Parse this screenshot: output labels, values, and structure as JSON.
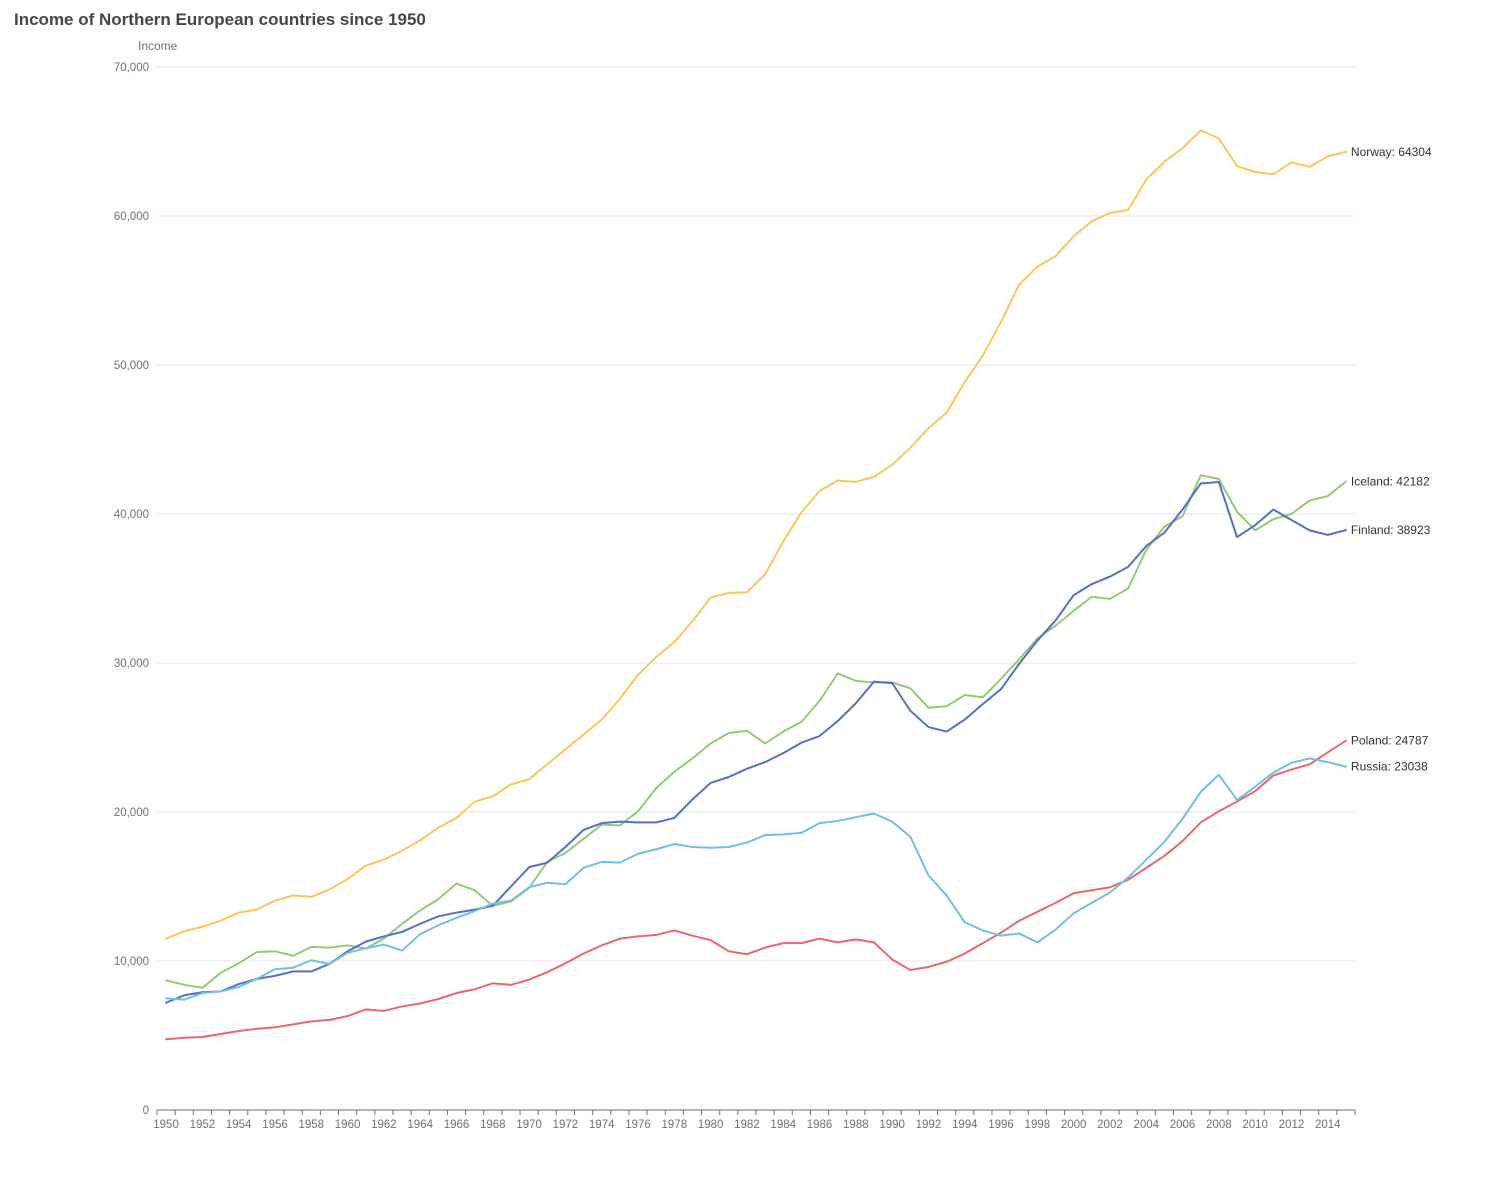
{
  "chart_data": {
    "type": "line",
    "title": "Income of Northern European countries since 1950",
    "ylabel": "Income",
    "xlabel": "",
    "ylim": [
      0,
      70000
    ],
    "yticks": [
      0,
      10000,
      20000,
      30000,
      40000,
      50000,
      60000,
      70000
    ],
    "ytick_labels": [
      "0",
      "10,000",
      "20,000",
      "30,000",
      "40,000",
      "50,000",
      "60,000",
      "70,000"
    ],
    "x_start": 1950,
    "x_end": 2015,
    "xtick_labels": [
      "1950",
      "1952",
      "1954",
      "1956",
      "1958",
      "1960",
      "1962",
      "1964",
      "1966",
      "1968",
      "1970",
      "1972",
      "1974",
      "1976",
      "1978",
      "1980",
      "1982",
      "1984",
      "1986",
      "1988",
      "1990",
      "1992",
      "1994",
      "1996",
      "1998",
      "2000",
      "2002",
      "2004",
      "2006",
      "2008",
      "2010",
      "2012",
      "2014"
    ],
    "grid": true,
    "series": [
      {
        "name": "Norway",
        "color": "#fac858",
        "end_label": "Norway: 64304",
        "values": [
          11500,
          12000,
          12300,
          12700,
          13250,
          13450,
          14050,
          14400,
          14300,
          14800,
          15500,
          16400,
          16800,
          17400,
          18100,
          18950,
          19600,
          20700,
          21050,
          21850,
          22200,
          23200,
          24200,
          25200,
          26200,
          27600,
          29200,
          30400,
          31400,
          32800,
          34400,
          34700,
          34750,
          35950,
          38150,
          40100,
          41550,
          42250,
          42150,
          42500,
          43300,
          44450,
          45750,
          46800,
          48850,
          50650,
          52900,
          55400,
          56600,
          57300,
          58650,
          59650,
          60200,
          60400,
          62450,
          63650,
          64550,
          65750,
          65200,
          63350,
          62950,
          62800,
          63600,
          63300,
          64000,
          64304
        ]
      },
      {
        "name": "Iceland",
        "color": "#91cc75",
        "end_label": "Iceland: 42182",
        "values": [
          8700,
          8400,
          8200,
          9200,
          9850,
          10600,
          10650,
          10350,
          10950,
          10900,
          11050,
          10850,
          11500,
          12500,
          13400,
          14150,
          15200,
          14750,
          13700,
          14000,
          14900,
          16650,
          17250,
          18200,
          19150,
          19100,
          20050,
          21600,
          22700,
          23600,
          24600,
          25300,
          25450,
          24600,
          25400,
          26050,
          27450,
          29300,
          28800,
          28700,
          28700,
          28300,
          27000,
          27100,
          27850,
          27700,
          28950,
          30250,
          31650,
          32500,
          33500,
          34450,
          34300,
          35000,
          37600,
          39150,
          39850,
          42600,
          42350,
          40150,
          38900,
          39650,
          40000,
          40900,
          41200,
          42182
        ]
      },
      {
        "name": "Finland",
        "color": "#5470c6",
        "end_label": "Finland: 38923",
        "values": [
          7200,
          7700,
          7900,
          7950,
          8450,
          8800,
          9000,
          9300,
          9300,
          9800,
          10650,
          11300,
          11650,
          11950,
          12500,
          13000,
          13250,
          13450,
          13700,
          15000,
          16300,
          16600,
          17650,
          18800,
          19250,
          19350,
          19300,
          19300,
          19600,
          20850,
          21950,
          22350,
          22900,
          23350,
          23950,
          24650,
          25100,
          26100,
          27300,
          28750,
          28650,
          26800,
          25700,
          25400,
          26200,
          27250,
          28250,
          29950,
          31500,
          32850,
          34550,
          35300,
          35800,
          36450,
          37850,
          38750,
          40300,
          42050,
          42150,
          38450,
          39250,
          40300,
          39600,
          38900,
          38600,
          38923
        ]
      },
      {
        "name": "Poland",
        "color": "#ee6666",
        "end_label": "Poland: 24787",
        "values": [
          4750,
          4850,
          4900,
          5100,
          5300,
          5450,
          5550,
          5750,
          5950,
          6050,
          6300,
          6750,
          6650,
          6950,
          7150,
          7450,
          7850,
          8100,
          8500,
          8400,
          8750,
          9250,
          9850,
          10500,
          11050,
          11500,
          11650,
          11750,
          12050,
          11700,
          11400,
          10650,
          10450,
          10900,
          11200,
          11200,
          11500,
          11250,
          11450,
          11250,
          10100,
          9400,
          9600,
          9950,
          10500,
          11200,
          11900,
          12700,
          13300,
          13900,
          14550,
          14750,
          14950,
          15450,
          16250,
          17050,
          18050,
          19300,
          20050,
          20700,
          21400,
          22450,
          22850,
          23200,
          24000,
          24787
        ]
      },
      {
        "name": "Russia",
        "color": "#73c0de",
        "end_label": "Russia: 23038",
        "values": [
          7500,
          7400,
          7850,
          7950,
          8250,
          8800,
          9450,
          9550,
          10050,
          9800,
          10550,
          10850,
          11100,
          10700,
          11800,
          12400,
          12900,
          13350,
          13850,
          14050,
          14950,
          15250,
          15150,
          16250,
          16650,
          16600,
          17200,
          17500,
          17850,
          17650,
          17600,
          17650,
          17950,
          18450,
          18500,
          18600,
          19250,
          19400,
          19650,
          19900,
          19350,
          18350,
          15750,
          14400,
          12600,
          12050,
          11700,
          11850,
          11250,
          12100,
          13200,
          13900,
          14600,
          15600,
          16800,
          18000,
          19550,
          21350,
          22500,
          20800,
          21700,
          22650,
          23300,
          23600,
          23350,
          23038
        ]
      }
    ]
  }
}
